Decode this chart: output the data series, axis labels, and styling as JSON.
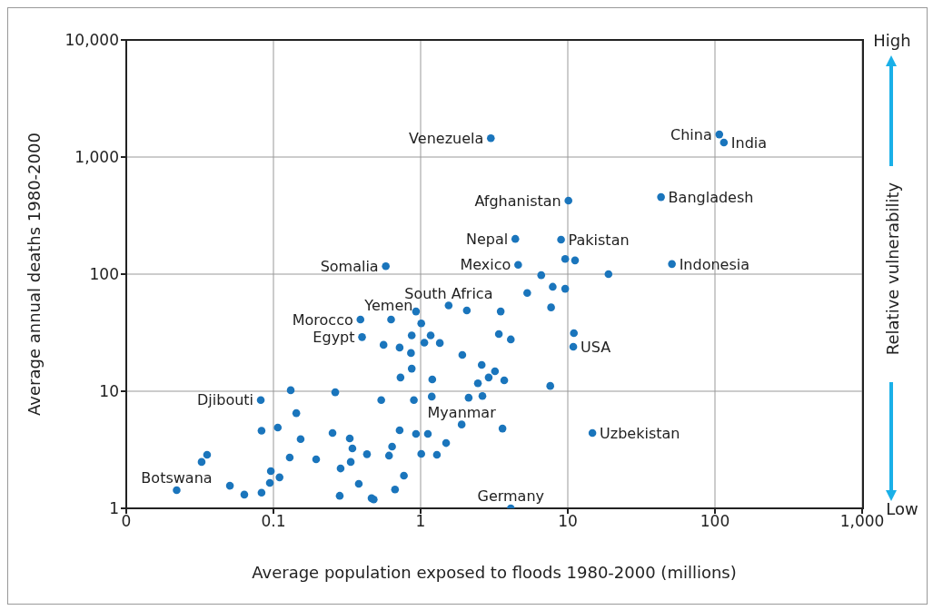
{
  "chart_data": {
    "type": "scatter",
    "xlabel": "Average population exposed to floods 1980-2000 (millions)",
    "ylabel": "Average annual deaths 1980-2000",
    "log": "xy",
    "grid": true,
    "marker": "circle",
    "xlim": [
      0.01,
      1000
    ],
    "ylim": [
      1,
      10000
    ],
    "xticks": [
      {
        "value": 0.01,
        "label": "0"
      },
      0.1,
      1,
      10,
      100,
      {
        "value": 1000,
        "label": "1,000"
      }
    ],
    "yticks": [
      1,
      10,
      100,
      {
        "value": 1000,
        "label": "1,000"
      },
      {
        "value": 10000,
        "label": "10,000"
      }
    ],
    "series": [
      {
        "color": "#1a75bc",
        "x": [
          3.0,
          107,
          115,
          10.1,
          43,
          4.4,
          9.0,
          0.58,
          4.6,
          51,
          0.93,
          1.55,
          0.39,
          0.4,
          10.9,
          0.082,
          1.9,
          14.7,
          0.022,
          4.1,
          0.131,
          0.263,
          0.143,
          0.083,
          0.107,
          0.153,
          0.252,
          0.33,
          0.344,
          0.432,
          0.0354,
          0.0325,
          0.129,
          0.195,
          0.335,
          0.286,
          0.096,
          0.11,
          0.0945,
          0.0506,
          0.38,
          0.0634,
          0.083,
          0.282,
          0.464,
          6.6,
          7.9,
          9.6,
          5.3,
          2.06,
          3.5,
          7.7,
          0.63,
          1.01,
          0.87,
          1.17,
          1.06,
          1.35,
          0.56,
          0.72,
          0.86,
          3.4,
          4.1,
          11.0,
          1.92,
          2.6,
          3.2,
          2.9,
          0.87,
          0.73,
          1.2,
          2.45,
          3.7,
          7.6,
          0.54,
          0.9,
          1.19,
          2.12,
          2.63,
          3.6,
          0.72,
          0.93,
          1.12,
          1.49,
          0.64,
          0.61,
          1.01,
          1.29,
          0.77,
          0.67,
          0.48,
          9.6,
          11.2,
          18.9
        ],
        "values": [
          1450,
          1560,
          1330,
          425,
          455,
          200,
          197,
          117,
          120,
          122,
          48,
          54,
          41,
          29,
          24,
          8.4,
          5.2,
          4.4,
          1.43,
          1.0,
          10.2,
          9.8,
          6.5,
          4.6,
          4.9,
          3.9,
          4.4,
          3.95,
          3.25,
          2.9,
          2.87,
          2.49,
          2.72,
          2.62,
          2.49,
          2.19,
          2.08,
          1.84,
          1.65,
          1.56,
          1.62,
          1.31,
          1.36,
          1.28,
          1.22,
          98,
          78,
          75,
          69,
          49,
          48,
          52,
          41,
          38,
          30,
          30,
          26,
          25.8,
          24.9,
          23.6,
          21.2,
          30.8,
          27.7,
          31.3,
          20.4,
          16.8,
          14.8,
          13.1,
          15.6,
          13.1,
          12.6,
          11.7,
          12.4,
          11.1,
          8.4,
          8.4,
          9.0,
          8.8,
          9.1,
          4.8,
          4.64,
          4.32,
          4.32,
          3.61,
          3.37,
          2.82,
          2.92,
          2.87,
          1.9,
          1.45,
          1.19,
          135,
          131,
          100
        ]
      }
    ],
    "annotations": [
      "High",
      "Relative vulnerability",
      "Low",
      {
        "text": "Venezuela",
        "x": 3.0,
        "y": 1450
      },
      {
        "text": "China",
        "x": 107,
        "y": 1560
      },
      {
        "text": "India",
        "x": 115,
        "y": 1330
      },
      {
        "text": "Afghanistan",
        "x": 10.1,
        "y": 425
      },
      {
        "text": "Bangladesh",
        "x": 43,
        "y": 455
      },
      {
        "text": "Nepal",
        "x": 4.4,
        "y": 200
      },
      {
        "text": "Pakistan",
        "x": 9.0,
        "y": 197
      },
      {
        "text": "Somalia",
        "x": 0.58,
        "y": 117
      },
      {
        "text": "Mexico",
        "x": 4.6,
        "y": 120
      },
      {
        "text": "Indonesia",
        "x": 51,
        "y": 122
      },
      {
        "text": "Yemen",
        "x": 0.93,
        "y": 48
      },
      {
        "text": "South Africa",
        "x": 1.55,
        "y": 54
      },
      {
        "text": "Morocco",
        "x": 0.39,
        "y": 41
      },
      {
        "text": "Egypt",
        "x": 0.4,
        "y": 29
      },
      {
        "text": "USA",
        "x": 10.9,
        "y": 24
      },
      {
        "text": "Djibouti",
        "x": 0.082,
        "y": 8.4
      },
      {
        "text": "Myanmar",
        "x": 1.9,
        "y": 5.2
      },
      {
        "text": "Uzbekistan",
        "x": 14.7,
        "y": 4.4
      },
      {
        "text": "Botswana",
        "x": 0.022,
        "y": 1.43
      },
      {
        "text": "Germany",
        "x": 4.1,
        "y": 1.0
      }
    ]
  }
}
